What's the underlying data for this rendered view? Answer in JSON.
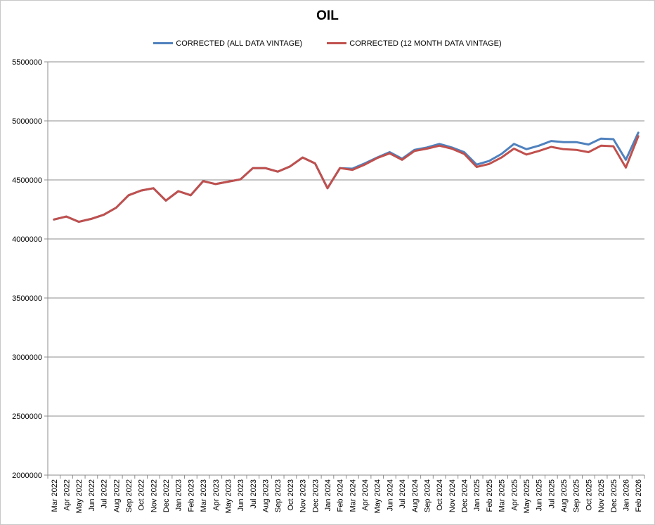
{
  "chart_data": {
    "type": "line",
    "title": "OIL",
    "xlabel": "",
    "ylabel": "",
    "ylim": [
      2000000,
      5500000
    ],
    "yticks": [
      2000000,
      2500000,
      3000000,
      3500000,
      4000000,
      4500000,
      5000000,
      5500000
    ],
    "grid": "horizontal",
    "legend_position": "top",
    "categories": [
      "Mar 2022",
      "Apr 2022",
      "May 2022",
      "Jun 2022",
      "Jul 2022",
      "Aug 2022",
      "Sep 2022",
      "Oct 2022",
      "Nov 2022",
      "Dec 2022",
      "Jan 2023",
      "Feb 2023",
      "Mar 2023",
      "Apr 2023",
      "May 2023",
      "Jun 2023",
      "Jul 2023",
      "Aug 2023",
      "Sep 2023",
      "Oct 2023",
      "Nov 2023",
      "Dec 2023",
      "Jan 2024",
      "Feb 2024",
      "Mar 2024",
      "Apr 2024",
      "May 2024",
      "Jun 2024",
      "Jul 2024",
      "Aug 2024",
      "Sep 2024",
      "Oct 2024",
      "Nov 2024",
      "Dec 2024",
      "Jan 2025",
      "Feb 2025",
      "Mar 2025",
      "Apr 2025",
      "May 2025",
      "Jun 2025",
      "Jul 2025",
      "Aug 2025",
      "Sep 2025",
      "Oct 2025",
      "Nov 2025",
      "Dec 2025",
      "Jan 2026",
      "Feb 2026"
    ],
    "series": [
      {
        "name": "CORRECTED (ALL DATA VINTAGE)",
        "color": "#4f81bd",
        "values": [
          4165000,
          4190000,
          4145000,
          4170000,
          4205000,
          4265000,
          4370000,
          4410000,
          4430000,
          4325000,
          4405000,
          4370000,
          4490000,
          4465000,
          4485000,
          4505000,
          4600000,
          4600000,
          4570000,
          4615000,
          4690000,
          4640000,
          4430000,
          4600000,
          4595000,
          4640000,
          4690000,
          4735000,
          4680000,
          4755000,
          4775000,
          4805000,
          4775000,
          4735000,
          4630000,
          4660000,
          4720000,
          4805000,
          4760000,
          4790000,
          4830000,
          4820000,
          4820000,
          4800000,
          4850000,
          4845000,
          4670000,
          4900000
        ]
      },
      {
        "name": "CORRECTED (12 MONTH DATA VINTAGE)",
        "color": "#c0504d",
        "values": [
          4165000,
          4190000,
          4145000,
          4170000,
          4205000,
          4265000,
          4370000,
          4410000,
          4430000,
          4325000,
          4405000,
          4370000,
          4490000,
          4465000,
          4485000,
          4505000,
          4600000,
          4600000,
          4570000,
          4615000,
          4690000,
          4640000,
          4430000,
          4600000,
          4585000,
          4630000,
          4685000,
          4725000,
          4670000,
          4745000,
          4765000,
          4790000,
          4765000,
          4720000,
          4610000,
          4635000,
          4690000,
          4765000,
          4715000,
          4745000,
          4780000,
          4760000,
          4755000,
          4735000,
          4790000,
          4785000,
          4605000,
          4870000
        ]
      }
    ]
  }
}
